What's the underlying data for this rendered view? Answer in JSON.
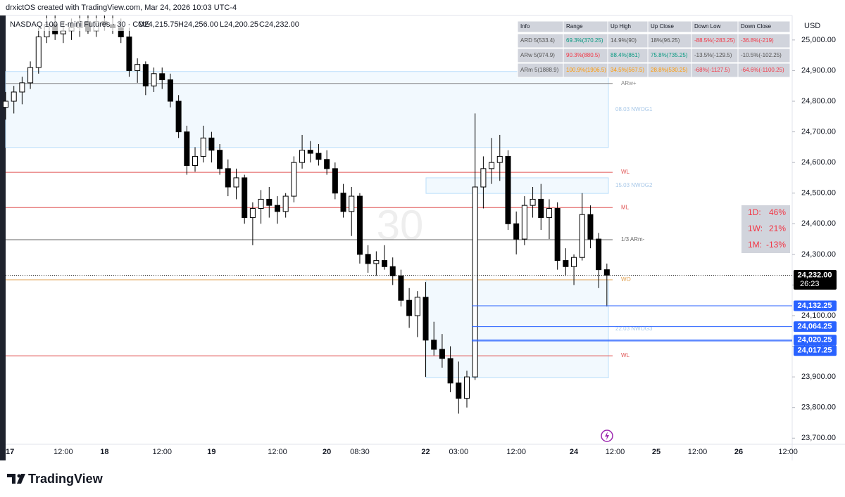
{
  "header": {
    "caption": "drxictOS created with TradingView.com, Mar 24, 2026 10:03 UTC-4",
    "symbol": "NASDAQ 100 E-mini Futures · 30 · CME",
    "ohlc": [
      "O24,215.75",
      "H24,256.00",
      "L24,200.25",
      "C24,232.00"
    ],
    "watermark": "30"
  },
  "chart_data": {
    "type": "candlestick",
    "categories": [
      "17",
      null,
      null,
      null,
      null,
      null,
      null,
      "12:00",
      null,
      null,
      null,
      null,
      "18",
      null,
      null,
      null,
      null,
      null,
      null,
      "12:00",
      null,
      null,
      null,
      null,
      null,
      "19",
      null,
      null,
      null,
      null,
      null,
      null,
      null,
      "12:00",
      null,
      null,
      null,
      null,
      null,
      "20",
      null,
      null,
      null,
      "08:30",
      null,
      null,
      null,
      null,
      null,
      null,
      null,
      "22",
      null,
      null,
      null,
      "03:00",
      null,
      null,
      null,
      null,
      null,
      null,
      "12:00",
      null,
      null,
      null,
      null,
      null,
      null,
      "24",
      null,
      null,
      null,
      null,
      "12:00",
      null,
      null,
      null,
      null,
      "25",
      null,
      null,
      null,
      null,
      "12:00",
      null,
      null,
      null,
      null,
      "26",
      null,
      null,
      null,
      null,
      null,
      "12:00"
    ],
    "open": [
      24780,
      24800,
      24830,
      24860,
      24910,
      25010,
      25050,
      25020,
      25030,
      25040,
      25060,
      25030,
      25060,
      25050,
      25040,
      25010,
      24900,
      24920,
      24850,
      24890,
      24870,
      24800,
      24700,
      24590,
      24620,
      24680,
      24640,
      24580,
      24520,
      24550,
      24420,
      24450,
      24480,
      24460,
      24440,
      24490,
      24600,
      24640,
      24630,
      24610,
      24580,
      24500,
      24440,
      24490,
      24300,
      24270,
      24280,
      24260,
      24230,
      24150,
      24100,
      24160,
      24020,
      23990,
      23960,
      23880,
      23830,
      23900,
      24520,
      24580,
      24600,
      24620,
      24400,
      24350,
      24460,
      24480,
      24420,
      24450,
      24280,
      24260,
      24290,
      24430,
      24350,
      24250,
      null,
      null,
      null,
      null,
      null,
      null,
      null,
      null,
      null,
      null,
      null,
      null,
      null,
      null,
      null,
      null,
      null,
      null,
      null,
      null,
      null,
      null
    ],
    "high": [
      24830,
      24850,
      24880,
      24930,
      25040,
      25080,
      25080,
      25060,
      25070,
      25080,
      25080,
      25080,
      25080,
      25080,
      25070,
      25040,
      24940,
      24930,
      24910,
      24910,
      24890,
      24820,
      24720,
      24650,
      24720,
      24700,
      24660,
      24610,
      24580,
      24560,
      24470,
      24510,
      24520,
      24490,
      24500,
      24620,
      24690,
      24670,
      24660,
      24640,
      24600,
      24530,
      24520,
      24500,
      24330,
      24310,
      24330,
      24290,
      24250,
      24190,
      24180,
      24210,
      24080,
      24040,
      24000,
      23950,
      23920,
      24760,
      24620,
      24680,
      24690,
      24640,
      24440,
      24490,
      24520,
      24530,
      24480,
      24470,
      24320,
      24300,
      24500,
      24460,
      24370,
      24270,
      null,
      null,
      null,
      null,
      null,
      null,
      null,
      null,
      null,
      null,
      null,
      null,
      null,
      null,
      null,
      null,
      null,
      null,
      null,
      null,
      null,
      null
    ],
    "low": [
      24740,
      24760,
      24790,
      24840,
      24890,
      24990,
      25000,
      24990,
      25000,
      25010,
      25020,
      25010,
      25030,
      25020,
      24990,
      24880,
      24860,
      24820,
      24830,
      24840,
      24780,
      24680,
      24560,
      24570,
      24600,
      24600,
      24560,
      24490,
      24480,
      24400,
      24330,
      24400,
      24420,
      24400,
      24420,
      24470,
      24580,
      24600,
      24590,
      24560,
      24480,
      24420,
      24360,
      24270,
      24240,
      24230,
      24250,
      24200,
      24130,
      24060,
      24030,
      23900,
      23970,
      23930,
      23850,
      23780,
      23800,
      23890,
      24450,
      24530,
      24540,
      24380,
      24300,
      24330,
      24420,
      24380,
      24350,
      24250,
      24230,
      24200,
      24280,
      24320,
      24190,
      24130,
      null,
      null,
      null,
      null,
      null,
      null,
      null,
      null,
      null,
      null,
      null,
      null,
      null,
      null,
      null,
      null,
      null,
      null,
      null,
      null,
      null,
      null
    ],
    "close": [
      24800,
      24830,
      24860,
      24910,
      25010,
      25050,
      25020,
      25030,
      25040,
      25060,
      25030,
      25060,
      25050,
      25040,
      25010,
      24900,
      24920,
      24850,
      24890,
      24870,
      24800,
      24700,
      24590,
      24620,
      24680,
      24640,
      24580,
      24520,
      24550,
      24420,
      24450,
      24480,
      24460,
      24440,
      24490,
      24600,
      24640,
      24630,
      24610,
      24580,
      24500,
      24440,
      24490,
      24300,
      24270,
      24280,
      24260,
      24230,
      24150,
      24100,
      24160,
      24020,
      23990,
      23960,
      23880,
      23830,
      23900,
      24520,
      24580,
      24600,
      24620,
      24400,
      24350,
      24460,
      24480,
      24420,
      24450,
      24280,
      24260,
      24290,
      24430,
      24350,
      24250,
      24232,
      null,
      null,
      null,
      null,
      null,
      null,
      null,
      null,
      null,
      null,
      null,
      null,
      null,
      null,
      null,
      null,
      null,
      null,
      null,
      null,
      null,
      null
    ],
    "up_color": "#ffffff",
    "down_color": "#000000",
    "ylim": [
      23680,
      25080
    ],
    "yticks": [
      {
        "value": 23700,
        "label": "23,700.00"
      },
      {
        "value": 23800,
        "label": "23,800.00"
      },
      {
        "value": 23900,
        "label": "23,900.00"
      },
      {
        "value": 24000,
        "label": "24,000.00"
      },
      {
        "value": 24100,
        "label": "24,100.00"
      },
      {
        "value": 24200,
        "label": "24,200.00"
      },
      {
        "value": 24300,
        "label": "24,300.00"
      },
      {
        "value": 24400,
        "label": "24,400.00"
      },
      {
        "value": 24500,
        "label": "24,500.00"
      },
      {
        "value": 24600,
        "label": "24,600.00"
      },
      {
        "value": 24700,
        "label": "24,700.00"
      },
      {
        "value": 24800,
        "label": "24,800.00"
      },
      {
        "value": 24900,
        "label": "24,900.00"
      },
      {
        "value": 25000,
        "label": "25,000.00"
      }
    ],
    "currency": "USD",
    "zones": [
      {
        "label": "08.03 NWOG1",
        "top": 24897,
        "bottom": 24649
      },
      {
        "label": "15.03 NWOG2",
        "top": 24550,
        "bottom": 24499
      },
      {
        "label": "22.03 NWOG3",
        "top": 24217,
        "bottom": 23897
      }
    ],
    "levels": [
      {
        "value": 24858,
        "label": "ARw+",
        "color": "#888888"
      },
      {
        "value": 24568,
        "label": "WL",
        "color": "#e05555"
      },
      {
        "value": 24453,
        "label": "ML",
        "color": "#e05555"
      },
      {
        "value": 24348,
        "label": "1/3 ARm-",
        "color": "#666666"
      },
      {
        "value": 24217,
        "label": "WO",
        "color": "#e0a050"
      },
      {
        "value": 23969,
        "label": "WL",
        "color": "#e05555"
      }
    ],
    "price_tags": [
      {
        "value": 24232,
        "label": "24,232.00",
        "countdown": "26:23",
        "color": "#000000"
      },
      {
        "value": 24132.25,
        "label": "24,132.25",
        "color": "#2962ff"
      },
      {
        "value": 24064.25,
        "label": "24,064.25",
        "color": "#2962ff"
      },
      {
        "value": 24020.25,
        "label": "24,020.25",
        "color": "#2962ff"
      },
      {
        "value": 24017.25,
        "label": "24,017.25",
        "color": "#2962ff"
      }
    ]
  },
  "info_table": {
    "columns": [
      "Info",
      "Range",
      "Up High",
      "Up Close",
      "Down Low",
      "Down Close"
    ],
    "rows": [
      [
        "ARD 5(533.4)",
        "69.3%(370.25)",
        "14.9%(90)",
        "18%(96.25)",
        "-88.5%(-283.25)",
        "-36.8%(-219)"
      ],
      [
        "ARw 5(974.9)",
        "90.3%(880.5)",
        "88.4%(861)",
        "75.8%(735.25)",
        "-13.5%(-129.5)",
        "-10.5%(-102.25)"
      ],
      [
        "ARm 5(1888.9)",
        "100.9%(1906.5)",
        "34.5%(567.5)",
        "28.8%(530.25)",
        "-68%(-1127.5)",
        "-64.6%(-1100.25)"
      ]
    ]
  },
  "performance": [
    {
      "label": "1D:",
      "value": "46%"
    },
    {
      "label": "1W:",
      "value": "21%"
    },
    {
      "label": "1M:",
      "value": "-13%"
    }
  ],
  "footer": {
    "brand": "TradingView"
  }
}
